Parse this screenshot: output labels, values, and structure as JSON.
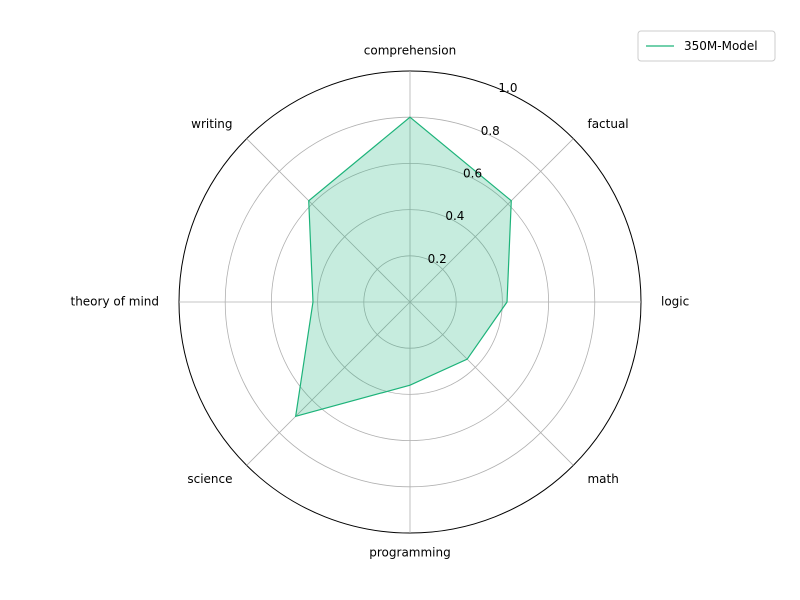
{
  "chart_data": {
    "type": "radar",
    "axes": [
      "comprehension",
      "factual",
      "logic",
      "math",
      "programming",
      "science",
      "theory of mind",
      "writing"
    ],
    "series": [
      {
        "name": "350M-Model",
        "values": [
          0.8,
          0.62,
          0.42,
          0.35,
          0.36,
          0.7,
          0.42,
          0.62
        ],
        "color": "#1db37a"
      }
    ],
    "rlim": [
      0,
      1.0
    ],
    "rticks": [
      "0.2",
      "0.4",
      "0.6",
      "0.8",
      "1.0"
    ],
    "grid": true,
    "legend_position": "top-right"
  }
}
